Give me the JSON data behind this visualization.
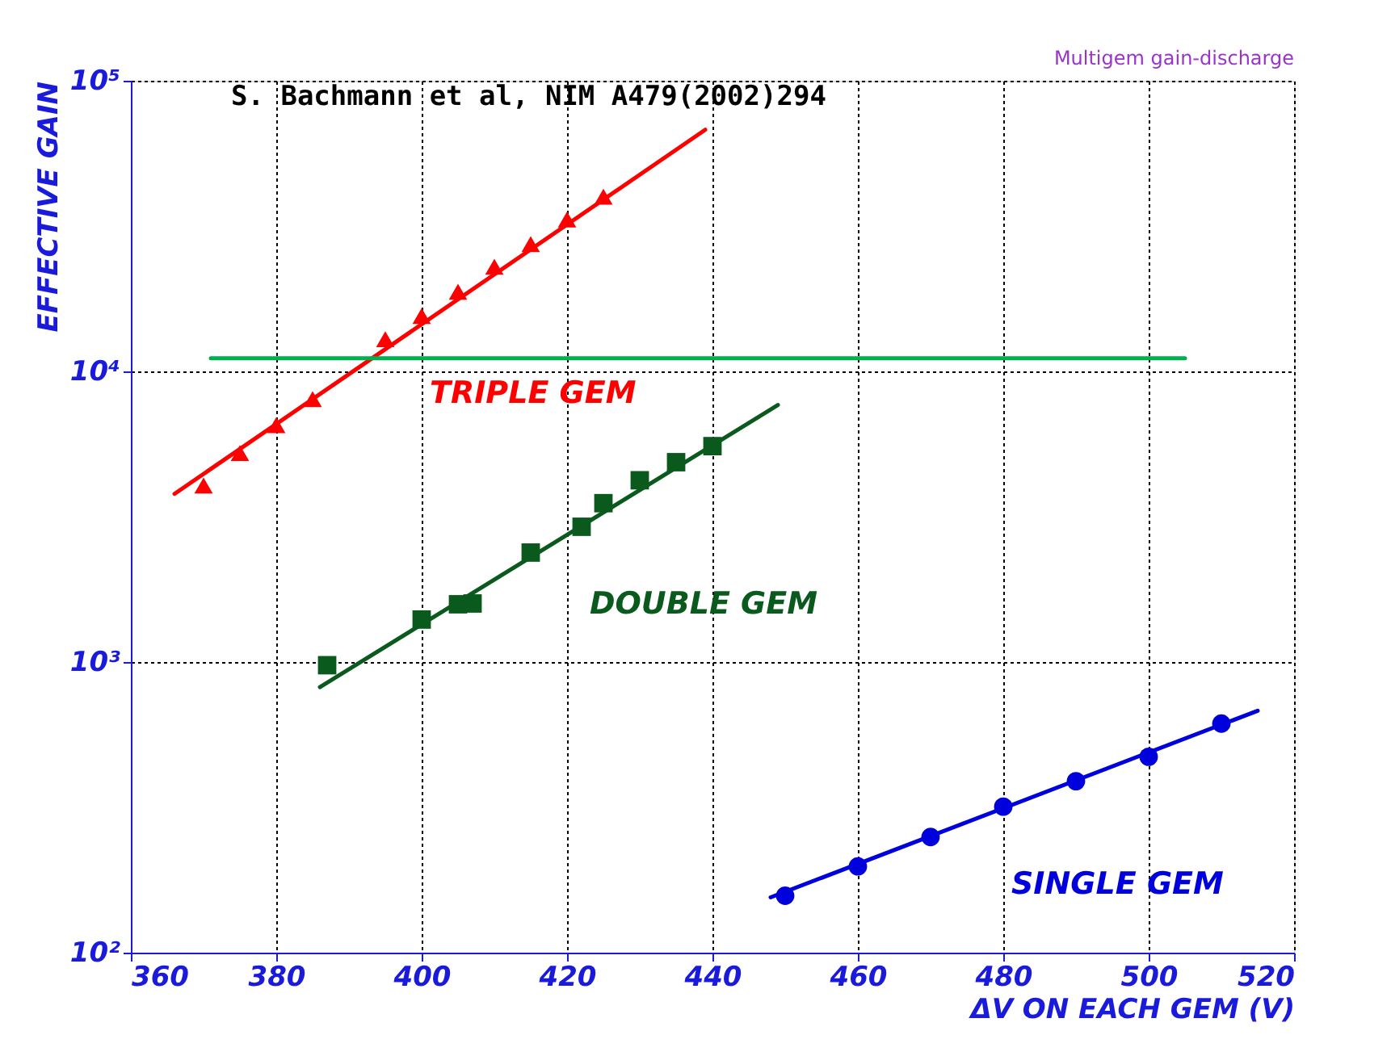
{
  "chart_data": {
    "type": "scatter",
    "xlabel": "ΔV ON EACH GEM (V)",
    "ylabel": "EFFECTIVE GAIN",
    "annotations": [
      "S. Bachmann et al, NIM A479(2002)294",
      "Multigem gain-discharge"
    ],
    "xlim": [
      360,
      520
    ],
    "xticks": [
      360,
      380,
      400,
      420,
      440,
      460,
      480,
      500,
      520
    ],
    "ylim": [
      100,
      100000
    ],
    "yticks": [
      {
        "value": 100,
        "label": "10²"
      },
      {
        "value": 1000,
        "label": "10³"
      },
      {
        "value": 10000,
        "label": "10⁴"
      },
      {
        "value": 100000,
        "label": "10⁵"
      }
    ],
    "log": "y",
    "grid": true,
    "line_style": "solid",
    "series": [
      {
        "name": "TRIPLE GEM",
        "marker": "triangle",
        "color": "#ff0000",
        "x": [
          370,
          375,
          380,
          385,
          395,
          400,
          405,
          410,
          415,
          420,
          425
        ],
        "values": [
          4050,
          5240,
          6530,
          8020,
          12900,
          15500,
          18800,
          22900,
          27400,
          33300,
          39900
        ]
      },
      {
        "type": "line",
        "color": "#ff0000",
        "x": [
          366,
          439
        ],
        "values": [
          3790,
          67800
        ]
      },
      {
        "name": "DOUBLE GEM",
        "marker": "square",
        "color": "#0a5a1e",
        "x": [
          387,
          400,
          405,
          407,
          415,
          422,
          425,
          430,
          435,
          440
        ],
        "values": [
          975,
          1400,
          1580,
          1590,
          2380,
          2920,
          3520,
          4220,
          4870,
          5530
        ]
      },
      {
        "type": "line",
        "color": "#0a5a1e",
        "x": [
          386,
          449
        ],
        "values": [
          820,
          7660
        ]
      },
      {
        "name": "SINGLE GEM",
        "marker": "circle",
        "color": "#0000dd",
        "x": [
          450,
          460,
          470,
          480,
          490,
          500,
          510
        ],
        "values": [
          157,
          198,
          250,
          318,
          389,
          472,
          614
        ]
      },
      {
        "type": "line",
        "color": "#0000dd",
        "x": [
          448,
          515
        ],
        "values": [
          155,
          680
        ]
      },
      {
        "type": "line",
        "color": "#00b050",
        "x": [
          371,
          505
        ],
        "values": [
          11100,
          11100
        ]
      }
    ]
  }
}
